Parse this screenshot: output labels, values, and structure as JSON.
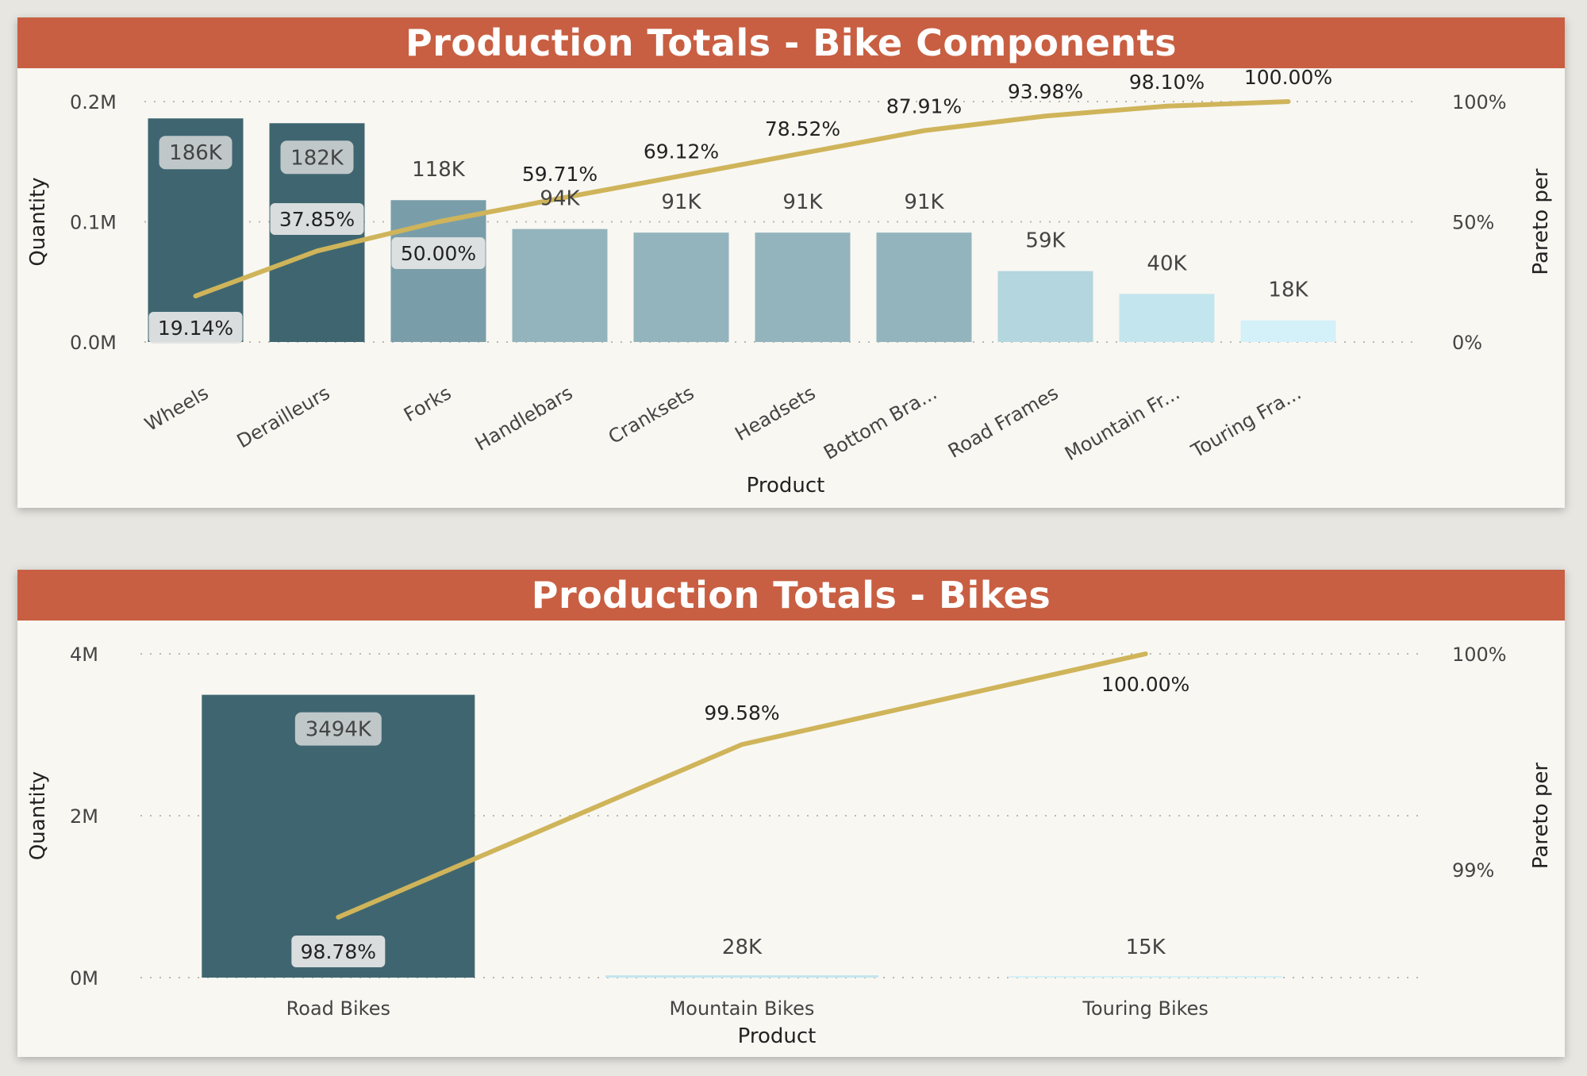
{
  "charts": [
    {
      "title": "Production Totals - Bike Components",
      "chart_data": {
        "type": "bar",
        "title": "Production Totals - Bike Components",
        "xlabel": "Product",
        "ylabel": "Quantity",
        "y2label": "Pareto per",
        "categories": [
          "Wheels",
          "Derailleurs",
          "Forks",
          "Handlebars",
          "Cranksets",
          "Headsets",
          "Bottom Bra...",
          "Road Frames",
          "Mountain Fr...",
          "Touring Fra..."
        ],
        "values": [
          186000,
          182000,
          118000,
          94000,
          91000,
          91000,
          91000,
          59000,
          40000,
          18000
        ],
        "value_labels": [
          "186K",
          "182K",
          "118K",
          "94K",
          "91K",
          "91K",
          "91K",
          "59K",
          "40K",
          "18K"
        ],
        "pareto": [
          19.14,
          37.85,
          50.0,
          59.71,
          69.12,
          78.52,
          87.91,
          93.98,
          98.1,
          100.0
        ],
        "pareto_labels": [
          "19.14%",
          "37.85%",
          "50.00%",
          "59.71%",
          "69.12%",
          "78.52%",
          "87.91%",
          "93.98%",
          "98.10%",
          "100.00%"
        ],
        "ylim": [
          0,
          200000
        ],
        "y_ticks": [
          "0.0M",
          "0.1M",
          "0.2M"
        ],
        "y2lim": [
          0,
          100
        ],
        "y2_ticks": [
          "0%",
          "50%",
          "100%"
        ],
        "bar_colors": [
          "#3f6670",
          "#3f6670",
          "#7a9ea9",
          "#93b4bd",
          "#93b4bd",
          "#93b4bd",
          "#93b4bd",
          "#b3d6df",
          "#c3e5ee",
          "#d4f0f8"
        ],
        "line_color": "#cfb45a",
        "grid": true
      }
    },
    {
      "title": "Production Totals - Bikes",
      "chart_data": {
        "type": "bar",
        "title": "Production Totals - Bikes",
        "xlabel": "Product",
        "ylabel": "Quantity",
        "y2label": "Pareto per",
        "categories": [
          "Road Bikes",
          "Mountain Bikes",
          "Touring Bikes"
        ],
        "values": [
          3494000,
          28000,
          15000
        ],
        "value_labels": [
          "3494K",
          "28K",
          "15K"
        ],
        "pareto": [
          98.78,
          99.58,
          100.0
        ],
        "pareto_labels": [
          "98.78%",
          "99.58%",
          "100.00%"
        ],
        "ylim": [
          0,
          4000000
        ],
        "y_ticks": [
          "0M",
          "2M",
          "4M"
        ],
        "y2lim": [
          98.5,
          100
        ],
        "y2_ticks": [
          "99%",
          "100%"
        ],
        "y2_tick_values": [
          99,
          100
        ],
        "bar_colors": [
          "#3f6670",
          "#c3e5ee",
          "#d4f0f8"
        ],
        "line_color": "#cfb45a",
        "grid": true
      }
    }
  ]
}
